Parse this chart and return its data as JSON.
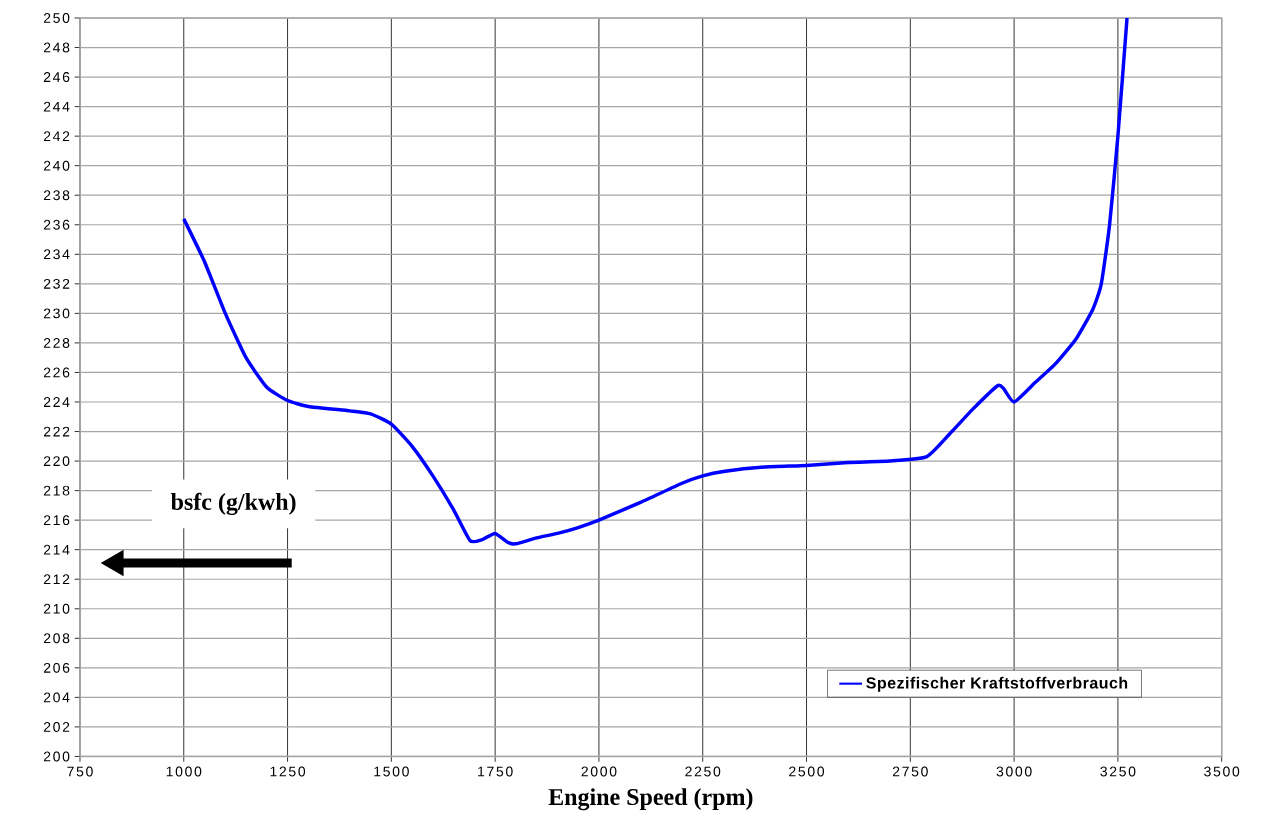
{
  "chart_data": {
    "type": "line",
    "xlabel": "Engine Speed (rpm)",
    "ylabel": "bsfc (g/kwh)",
    "xlim": [
      750,
      3500
    ],
    "xticks": [
      750,
      1000,
      1250,
      1500,
      1750,
      2000,
      2250,
      2500,
      2750,
      3000,
      3250,
      3500
    ],
    "ylim": [
      200,
      250
    ],
    "yticks": [
      200,
      202,
      204,
      206,
      208,
      210,
      212,
      214,
      216,
      218,
      220,
      222,
      224,
      226,
      228,
      230,
      232,
      234,
      236,
      238,
      240,
      242,
      244,
      246,
      248,
      250
    ],
    "grid": true,
    "legend": "bottom right",
    "marker": "none",
    "line_style": "solid",
    "series": [
      {
        "name": "Spezifischer Kraftstoffverbrauch",
        "color": "#0000ff",
        "x": [
          1000,
          1050,
          1100,
          1150,
          1200,
          1250,
          1300,
          1400,
          1450,
          1500,
          1550,
          1600,
          1650,
          1690,
          1720,
          1750,
          1780,
          1800,
          1850,
          1900,
          1950,
          2000,
          2100,
          2200,
          2250,
          2300,
          2400,
          2500,
          2600,
          2700,
          2790,
          2850,
          2900,
          2960,
          2975,
          3000,
          3050,
          3100,
          3150,
          3190,
          3210,
          3230,
          3250,
          3272
        ],
        "values": [
          236.4,
          233.5,
          230.0,
          227.0,
          225.0,
          224.1,
          223.7,
          223.4,
          223.2,
          222.5,
          221.0,
          219.0,
          216.7,
          214.6,
          214.7,
          215.1,
          214.5,
          214.4,
          214.8,
          215.1,
          215.5,
          216.0,
          217.2,
          218.5,
          219.0,
          219.3,
          219.6,
          219.7,
          219.9,
          220.0,
          220.3,
          222.0,
          223.5,
          225.1,
          224.9,
          224.0,
          225.3,
          226.6,
          228.3,
          230.3,
          232.0,
          236.0,
          242.0,
          250.0
        ]
      }
    ]
  }
}
